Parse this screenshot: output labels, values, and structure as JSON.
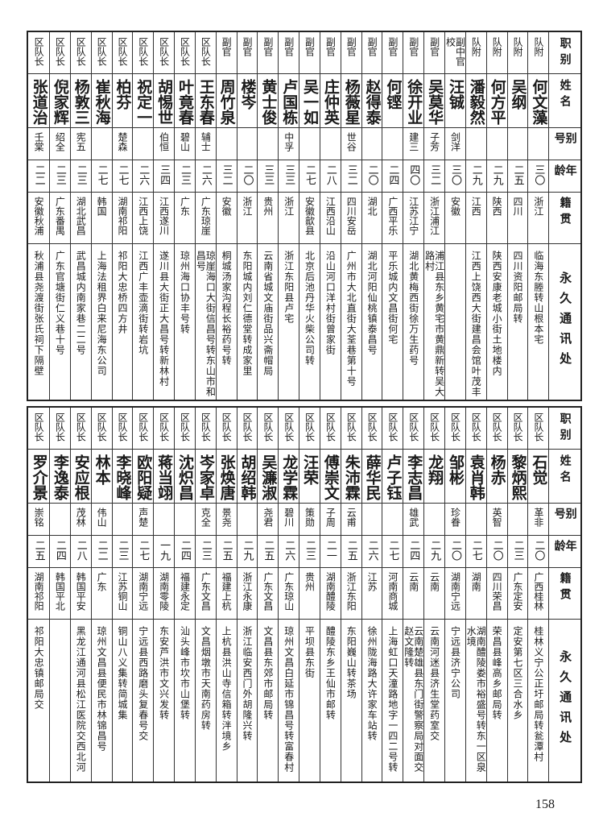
{
  "headers": [
    "职别",
    "姓名",
    "别号",
    "年龄",
    "籍贯",
    "永久通讯处"
  ],
  "page_number": "158",
  "table_top": [
    [
      "队附",
      "何文藻",
      "",
      "三〇",
      "浙江",
      "临海东塍转山根本宅"
    ],
    [
      "队附",
      "吴纲",
      "",
      "二五",
      "四川",
      "四川资阳邮局转"
    ],
    [
      "队附",
      "何方平",
      "",
      "二九",
      "陕西",
      "陕西安康老城小街土地楼内"
    ],
    [
      "队附",
      "潘毅然",
      "",
      "二九",
      "江西",
      "江西上饶西大街建昌会馆叶茂丰"
    ],
    [
      "副中官校",
      "汪铖",
      "剑洋",
      "三〇",
      "安徽",
      ""
    ],
    [
      "副官",
      "吴莫华",
      "子芳",
      "三二",
      "浙江浦江",
      "浦江县东乡黄宅市黄鼎新转吴大路村"
    ],
    [
      "副官",
      "徐开业",
      "建三",
      "四〇",
      "江苏江宁",
      "湖北黄梅西街徐万生药号"
    ],
    [
      "副官",
      "何铿",
      "",
      "二四",
      "广西平乐",
      "平乐城内文昌街何宅"
    ],
    [
      "副官",
      "赵得泰",
      "",
      "二〇",
      "湖北",
      "湖北河阳仙桃镇泰昌号"
    ],
    [
      "副官",
      "杨薇星",
      "世谷",
      "三二",
      "四川安岳",
      "广州市大北直街大荃巷第十号"
    ],
    [
      "副官",
      "庄仲英",
      "",
      "二八",
      "江西沿山",
      "沿山河口洋村街曾家街"
    ],
    [
      "副官",
      "吴一如",
      "",
      "二七",
      "安徽歙县",
      "北京后池丹华火柴公司转"
    ],
    [
      "副官",
      "卢国栋",
      "中孚",
      "三三",
      "浙江",
      "浙江东阳县卢宅"
    ],
    [
      "副官",
      "黄士俊",
      "",
      "三三",
      "贵州",
      "云南省城文庙街品兴斋帽局"
    ],
    [
      "副官",
      "楼岑",
      "",
      "二〇",
      "浙江",
      "东阳城内刘仁德堂转成家里"
    ],
    [
      "副官",
      "周竹泉",
      "",
      "三二",
      "安徽",
      "桐城汤家沟程长裕药号转"
    ],
    [
      "区队长",
      "王东春",
      "辅士",
      "二六",
      "广东琼崖",
      "琼崖海口大街信昌号转东山市和昌号"
    ],
    [
      "区队长",
      "叶竟春",
      "碧山",
      "二三",
      "广东",
      "琼州海口协丰号转"
    ],
    [
      "区队长",
      "胡惕世",
      "伯恒",
      "三四",
      "江西遂川",
      "遂川县大街正大昌号转新林村"
    ],
    [
      "区队长",
      "祝定一",
      "",
      "二六",
      "江西上饶",
      "江西广丰壶滴街转岩坑"
    ],
    [
      "区队长",
      "柏芬",
      "楚森",
      "二七",
      "湖南祁阳",
      "祁阳大忠桥四方井"
    ],
    [
      "区队长",
      "崔秋海",
      "",
      "二七",
      "韩国",
      "上海法租界白来尼海东公司"
    ],
    [
      "区队长",
      "杨敦三",
      "宪五",
      "二三",
      "湖北武昌",
      "武昌城内南家巷二二号"
    ],
    [
      "区队长",
      "倪家辉",
      "绍全",
      "二三",
      "广东番禺",
      "广东官塘街仁义巷十号"
    ],
    [
      "区队长",
      "张道治",
      "壬棠",
      "二二",
      "安徽秋浦",
      "秋浦县尧渡街张氏祠下隔壁"
    ]
  ],
  "table_bottom": [
    [
      "区队长",
      "石觉",
      "革非",
      "二〇",
      "广西桂林",
      "桂林义宁公正圩邮局转瓮潭村"
    ],
    [
      "区队长",
      "黎炳熙",
      "",
      "二三",
      "广东定安",
      "定安第七区三合水乡"
    ],
    [
      "区队长",
      "杨赤",
      "英智",
      "二〇",
      "四川荣昌",
      "荣昌县峰高乡邮局转"
    ],
    [
      "区队长",
      "袁肖韩",
      "",
      "二七",
      "湖南",
      "湖南醴陵娄市裕盛号转东一区泉水境"
    ],
    [
      "区队长",
      "邹彬",
      "珍眷",
      "二〇",
      "湖南宁远",
      "宁远县济宁公司"
    ],
    [
      "区队长",
      "龙翔",
      "",
      "二九",
      "云南",
      "云南河迷县济生堂药室交"
    ],
    [
      "区队长",
      "李志昌",
      "雄武",
      "二四",
      "云南",
      "云南楚雄县东门街警察局对面交赵文隆转"
    ],
    [
      "区队长",
      "卢子钰",
      "",
      "二七",
      "河南商城",
      "上海虹口天潼路地字一四二号转"
    ],
    [
      "区队长",
      "薛华民",
      "",
      "二六",
      "江苏",
      "徐州陇海路大许家车站转"
    ],
    [
      "区队长",
      "朱沛霖",
      "云甫",
      "二五",
      "浙江东阳",
      "东阳巍山转茶场"
    ],
    [
      "区队长",
      "傅崇文",
      "子周",
      "二一",
      "湖南醴陵",
      "醴陵东乡王仙市邮转"
    ],
    [
      "区队长",
      "汪荣",
      "策勋",
      "二三",
      "贵州",
      "平坝县东街"
    ],
    [
      "区队长",
      "龙学霖",
      "碧川",
      "二六",
      "广东琼山",
      "琼州文昌白延市锦昌号转富春村"
    ],
    [
      "区队长",
      "吴濂淑",
      "尧君",
      "二五",
      "广东文昌",
      "文昌县东郊市邮局转"
    ],
    [
      "区队长",
      "胡绍韩",
      "",
      "二九",
      "浙江永康",
      "浙江临安西门外胡隆兴转"
    ],
    [
      "区队长",
      "张焕唐",
      "景尧",
      "二五",
      "福建上杭",
      "上杭县洪山寺信箱转泮境乡"
    ],
    [
      "区队长",
      "岑家卓",
      "克全",
      "二三",
      "广东文昌",
      "文昌烟墩市天南药房转"
    ],
    [
      "区队长",
      "沈炽昌",
      "",
      "二四",
      "福建永定",
      "汕头峰市坎市山堡转"
    ],
    [
      "区队长",
      "蒋当翊",
      "",
      "一九",
      "湖南零陵",
      "东安芦洪市文兴发转"
    ],
    [
      "区队长",
      "欧阳疑",
      "声楚",
      "二七",
      "湖南宁远",
      "宁远县西路磨头复春号交"
    ],
    [
      "区队长",
      "李晓峰",
      "",
      "二三",
      "江苏铜山",
      "铜山八义集转简城集"
    ],
    [
      "区队长",
      "林本",
      "伟山",
      "二二",
      "广东",
      "琼州文昌县便民市林锦昌号"
    ],
    [
      "区队长",
      "安应根",
      "茂林",
      "二八",
      "韩国平安",
      "黑龙江通河县松江医院交西北河"
    ],
    [
      "区队长",
      "李逸泰",
      "",
      "二四",
      "韩国平北",
      ""
    ],
    [
      "区队长",
      "罗介景",
      "崇铭",
      "二五",
      "湖南祁阳",
      "祁阳大忠镇邮局交"
    ]
  ]
}
